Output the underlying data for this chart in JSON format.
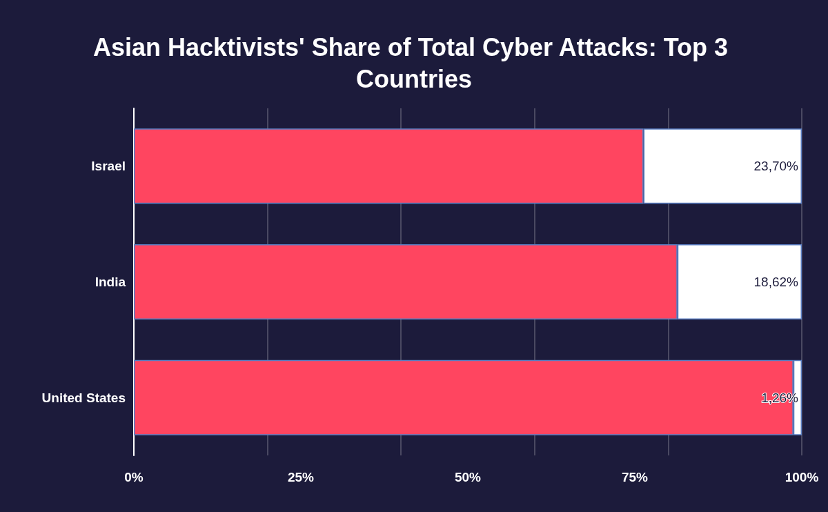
{
  "chart_data": {
    "type": "bar",
    "title": "Asian Hacktivists' Share of Total Cyber Attacks: Top 3 Countries",
    "orientation": "horizontal",
    "stacked": true,
    "categories": [
      "Israel",
      "India",
      "United States"
    ],
    "series": [
      {
        "color": "#ff4560",
        "values": [
          76.3,
          81.38,
          98.74
        ]
      },
      {
        "color": "#ffffff",
        "values": [
          23.7,
          18.62,
          1.26
        ],
        "value_labels": [
          "23,70%",
          "18,62%",
          "1,26%"
        ]
      }
    ],
    "xlim": [
      0,
      100
    ],
    "xticks": [
      {
        "value": 0,
        "label": "0%"
      },
      {
        "value": 25,
        "label": "25%"
      },
      {
        "value": 50,
        "label": "50%"
      },
      {
        "value": 75,
        "label": "75%"
      },
      {
        "value": 100,
        "label": "100%"
      }
    ],
    "grid": "x"
  }
}
